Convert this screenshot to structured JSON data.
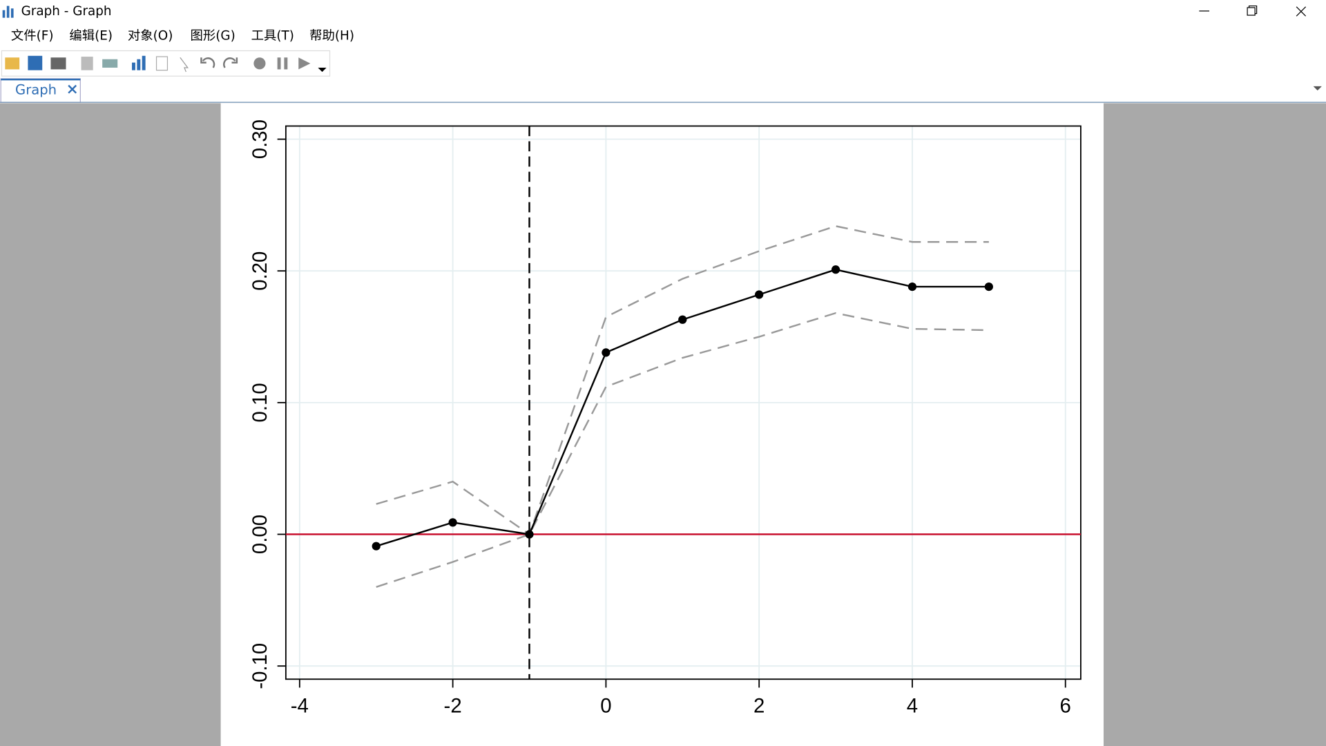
{
  "window": {
    "title": "Graph - Graph",
    "menu": [
      "文件(F)",
      "编辑(E)",
      "对象(O)",
      "图形(G)",
      "工具(T)",
      "帮助(H)"
    ],
    "tab": "Graph"
  },
  "chart_data": {
    "type": "line",
    "x": [
      -3,
      -2,
      -1,
      0,
      1,
      2,
      3,
      4,
      5
    ],
    "series": [
      {
        "color": "#999999",
        "dashed": true,
        "markers": false,
        "values": [
          0.023,
          0.04,
          0,
          0.165,
          0.194,
          0.215,
          0.234,
          0.222,
          0.222
        ]
      },
      {
        "color": "#999999",
        "dashed": true,
        "markers": false,
        "values": [
          -0.04,
          -0.021,
          0,
          0.112,
          0.134,
          0.15,
          0.168,
          0.156,
          0.155
        ]
      },
      {
        "color": "#000000",
        "dashed": false,
        "markers": true,
        "values": [
          -0.009,
          0.009,
          0,
          0.138,
          0.163,
          0.182,
          0.201,
          0.188,
          0.188
        ]
      }
    ],
    "xlim": [
      -4.18,
      6.2
    ],
    "xticks": [
      -4,
      -2,
      0,
      2,
      4,
      6
    ],
    "ylim": [
      -0.11,
      0.31
    ],
    "yticks": [
      {
        "value": -0.1,
        "label": "-0.10"
      },
      {
        "value": 0,
        "label": "0.00"
      },
      {
        "value": 0.1,
        "label": "0.10"
      },
      {
        "value": 0.2,
        "label": "0.20"
      },
      {
        "value": 0.3,
        "label": "0.30"
      }
    ],
    "grid": true,
    "hline": {
      "value": 0,
      "color": "#c8102e"
    },
    "vline": {
      "value": -1,
      "color": "#000000"
    }
  }
}
